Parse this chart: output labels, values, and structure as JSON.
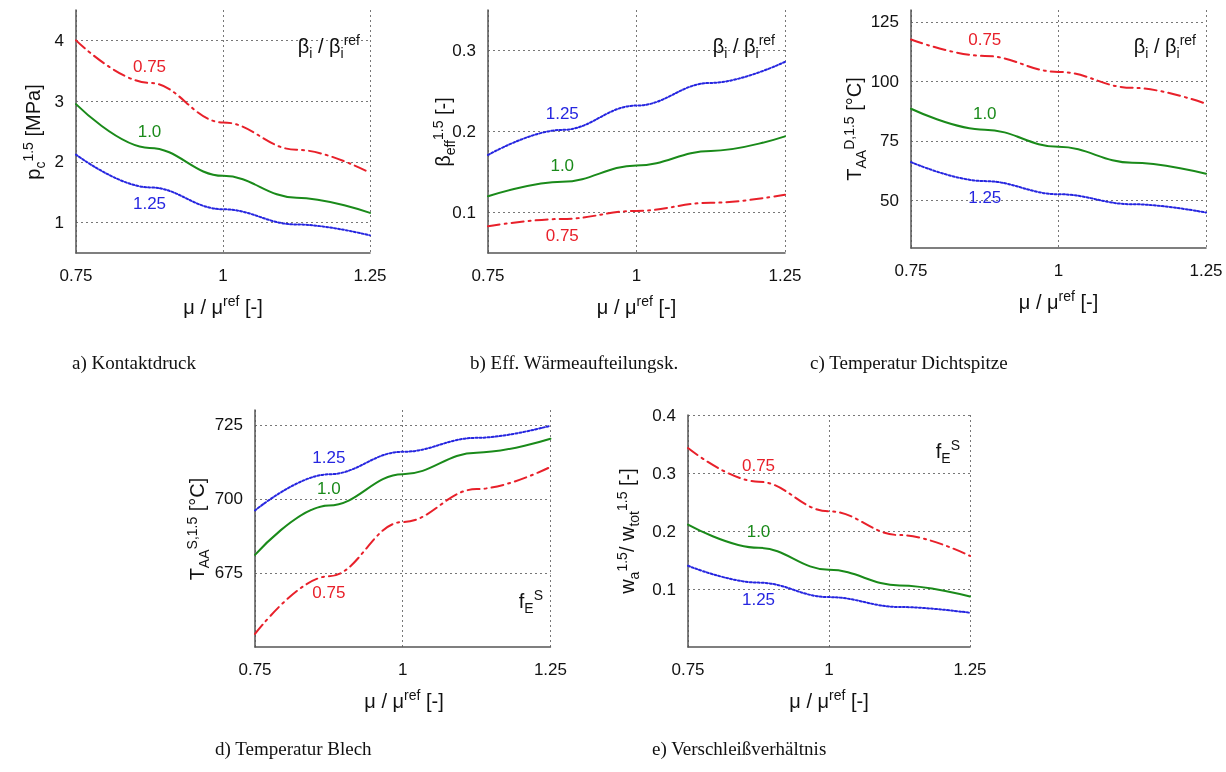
{
  "chart_data": [
    {
      "type": "line",
      "title": "a) Kontaktdruck",
      "xlabel": "μ / μ$^{ref}$ [-]",
      "ylabel": "p$_{c}$$^{1.5}$ [MPa]",
      "annotations": [
        "β$_{i}$ / β$_{i}$$^{ref}$"
      ],
      "x": [
        0.75,
        0.875,
        1,
        1.125,
        1.25
      ],
      "xlim": [
        0.75,
        1.25
      ],
      "xticks": [
        0.75,
        1,
        1.25
      ],
      "ylim": [
        0.5,
        4.5
      ],
      "yticks": [
        1,
        2,
        3,
        4
      ],
      "grid": true,
      "series": [
        {
          "name": "0.75",
          "color": "#e8202a",
          "line_style": "dashed",
          "values": [
            4.0,
            3.3,
            2.65,
            2.2,
            1.82
          ]
        },
        {
          "name": "1.0",
          "color": "#1a8a1a",
          "line_style": "solid",
          "values": [
            2.95,
            2.23,
            1.77,
            1.41,
            1.16
          ]
        },
        {
          "name": "1.25",
          "color": "#2626e0",
          "line_style": "dotted",
          "values": [
            2.12,
            1.58,
            1.22,
            0.97,
            0.79
          ]
        }
      ]
    },
    {
      "type": "line",
      "title": "b) Eff. Wärmeaufteilungsk.",
      "xlabel": "μ / μ$^{ref}$ [-]",
      "ylabel": "β$_{eff}$$^{1.5}$ [-]",
      "annotations": [
        "β$_{i}$ / β$_{i}$$^{ref}$"
      ],
      "x": [
        0.75,
        0.875,
        1,
        1.125,
        1.25
      ],
      "xlim": [
        0.75,
        1.25
      ],
      "xticks": [
        0.75,
        1,
        1.25
      ],
      "ylim": [
        0.05,
        0.35
      ],
      "yticks": [
        0.1,
        0.2,
        0.3
      ],
      "grid": true,
      "series": [
        {
          "name": "1.25",
          "color": "#2626e0",
          "line_style": "dotted",
          "values": [
            0.171,
            0.202,
            0.232,
            0.26,
            0.286
          ]
        },
        {
          "name": "1.0",
          "color": "#1a8a1a",
          "line_style": "solid",
          "values": [
            0.12,
            0.138,
            0.158,
            0.176,
            0.194
          ]
        },
        {
          "name": "0.75",
          "color": "#e8202a",
          "line_style": "dashed",
          "values": [
            0.083,
            0.092,
            0.102,
            0.112,
            0.122
          ]
        }
      ]
    },
    {
      "type": "line",
      "title": "c) Temperatur Dichtspitze",
      "xlabel": "μ / μ$^{ref}$ [-]",
      "ylabel": "T$_{AA}$$^{D,1.5}$ [°C]",
      "annotations": [
        "β$_{i}$ / β$_{i}$$^{ref}$"
      ],
      "x": [
        0.75,
        0.875,
        1,
        1.125,
        1.25
      ],
      "xlim": [
        0.75,
        1.25
      ],
      "xticks": [
        0.75,
        1,
        1.25
      ],
      "ylim": [
        30,
        130
      ],
      "yticks": [
        50,
        75,
        100,
        125
      ],
      "grid": true,
      "series": [
        {
          "name": "0.75",
          "color": "#e8202a",
          "line_style": "dashed",
          "values": [
            117.6,
            110.7,
            104,
            97.3,
            90.6
          ]
        },
        {
          "name": "1.0",
          "color": "#1a8a1a",
          "line_style": "solid",
          "values": [
            88.5,
            79.7,
            72.5,
            65.8,
            61.2
          ]
        },
        {
          "name": "1.25",
          "color": "#2626e0",
          "line_style": "dotted",
          "values": [
            66.1,
            58.1,
            52.6,
            48.4,
            44.9
          ]
        }
      ]
    },
    {
      "type": "line",
      "title": "d) Temperatur Blech",
      "xlabel": "μ / μ$^{ref}$ [-]",
      "ylabel": "T$_{AA}$$^{S,1.5}$ [°C]",
      "annotations": [
        "f$_{E}$$^{S}$"
      ],
      "x": [
        0.75,
        0.875,
        1,
        1.125,
        1.25
      ],
      "xlim": [
        0.75,
        1.25
      ],
      "xticks": [
        0.75,
        1,
        1.25
      ],
      "ylim": [
        650,
        730
      ],
      "yticks": [
        675,
        700,
        725
      ],
      "grid": true,
      "series": [
        {
          "name": "1.25",
          "color": "#2626e0",
          "line_style": "dotted",
          "values": [
            696.1,
            708.3,
            715.9,
            720.6,
            724.7
          ]
        },
        {
          "name": "1.0",
          "color": "#1a8a1a",
          "line_style": "solid",
          "values": [
            681.1,
            697.8,
            708.3,
            715.6,
            720.3
          ]
        },
        {
          "name": "0.75",
          "color": "#e8202a",
          "line_style": "dashed",
          "values": [
            654.4,
            673.9,
            692.2,
            703.3,
            710.8
          ]
        }
      ]
    },
    {
      "type": "line",
      "title": "e) Verschleißverhältnis",
      "xlabel": "μ / μ$^{ref}$ [-]",
      "ylabel": "w$_{a}$$^{1.5}$/ w$_{tot}$$^{1.5}$ [-]",
      "annotations": [
        "f$_{E}$$^{S}$"
      ],
      "x": [
        0.75,
        0.875,
        1,
        1.125,
        1.25
      ],
      "xlim": [
        0.75,
        1.25
      ],
      "xticks": [
        0.75,
        1,
        1.25
      ],
      "ylim": [
        0,
        0.4
      ],
      "yticks": [
        0.1,
        0.2,
        0.3,
        0.4
      ],
      "grid": true,
      "series": [
        {
          "name": "0.75",
          "color": "#e8202a",
          "line_style": "dashed",
          "values": [
            0.343,
            0.285,
            0.234,
            0.193,
            0.157
          ]
        },
        {
          "name": "1.0",
          "color": "#1a8a1a",
          "line_style": "solid",
          "values": [
            0.211,
            0.171,
            0.133,
            0.106,
            0.087
          ]
        },
        {
          "name": "1.25",
          "color": "#2626e0",
          "line_style": "dotted",
          "values": [
            0.14,
            0.111,
            0.086,
            0.069,
            0.059
          ]
        }
      ]
    }
  ]
}
